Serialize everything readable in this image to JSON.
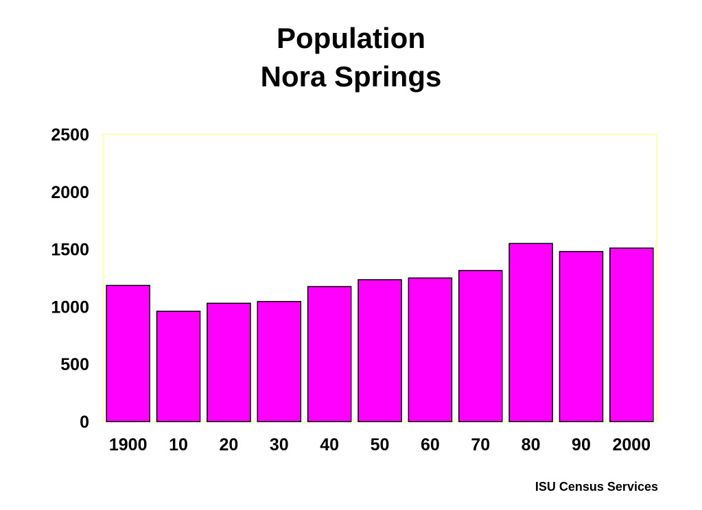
{
  "chart_data": {
    "type": "bar",
    "title_lines": [
      "Population",
      "Nora Springs"
    ],
    "categories": [
      "1900",
      "10",
      "20",
      "30",
      "40",
      "50",
      "60",
      "70",
      "80",
      "90",
      "2000"
    ],
    "values": [
      1185,
      960,
      1030,
      1045,
      1175,
      1235,
      1250,
      1315,
      1550,
      1480,
      1510
    ],
    "ylim": [
      0,
      2500
    ],
    "yticks": [
      "0",
      "500",
      "1000",
      "1500",
      "2000",
      "2500"
    ],
    "grid": false,
    "legend": "none",
    "bar_color": "#ff00ff",
    "bar_stroke": "#000000",
    "plot_border_color": "#ffff99"
  },
  "footer": {
    "source": "ISU Census Services"
  }
}
